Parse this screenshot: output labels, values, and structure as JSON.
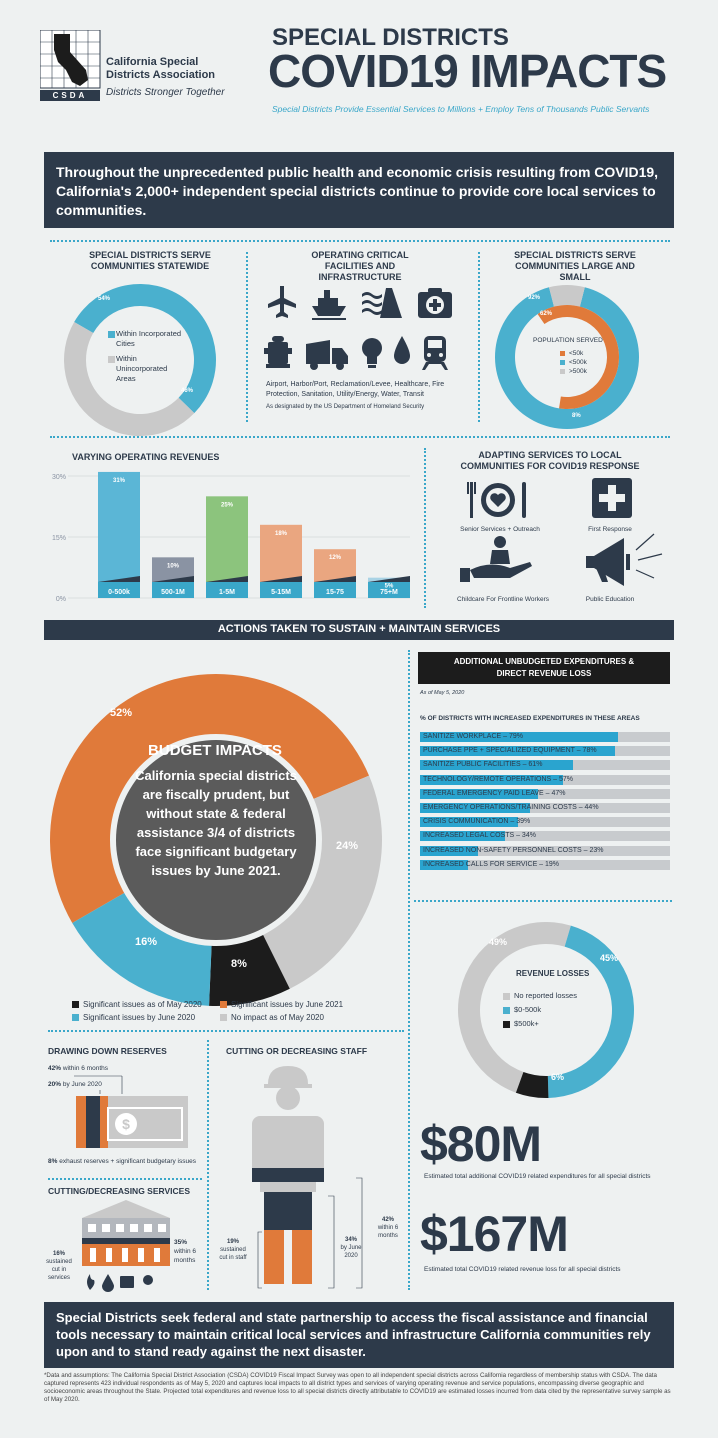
{
  "header": {
    "org_name_1": "California Special",
    "org_name_2": "Districts Association",
    "org_abbr": "CSDA",
    "org_tagline": "Districts Stronger Together",
    "title_small": "SPECIAL DISTRICTS",
    "title_big": "COVID19 IMPACTS",
    "subtitle": "Special Districts Provide Essential Services to Millions + Employ Tens of Thousands Public Servants"
  },
  "intro": "Throughout the unprecedented public health and economic crisis resulting from COVID19, California's 2,000+ independent special districts continue to provide core local services to communities.",
  "serve_statewide": {
    "title": "SPECIAL DISTRICTS SERVE COMMUNITIES STATEWIDE",
    "pct_within": "54%",
    "pct_unincorporated": "46%",
    "legend_within": "Within Incorporated Cities",
    "legend_unincorp": "Within Unincorporated Areas",
    "values": [
      54,
      46
    ],
    "colors": [
      "#4ab0ce",
      "#c9c9c9"
    ]
  },
  "critical_facilities": {
    "title": "OPERATING CRITICAL FACILITIES AND INFRASTRUCTURE",
    "icons": [
      "airplane-icon",
      "ship-icon",
      "levee-icon",
      "healthcare-icon",
      "fire-hydrant-icon",
      "garbage-truck-icon",
      "lightbulb-icon",
      "water-drop-icon",
      "train-icon"
    ],
    "text": "Airport, Harbor/Port, Reclamation/Levee, Healthcare, Fire Protection, Sanitation, Utility/Energy, Water, Transit",
    "note": "As designated by the US Department of Homeland Security"
  },
  "serve_large_small": {
    "title": "SPECIAL DISTRICTS SERVE COMMUNITIES LARGE AND SMALL",
    "outer_pct": "92%",
    "inner_pct": "62%",
    "small_pct": "8%",
    "legend_title": "POPULATION SERVED",
    "legend": [
      "<50k",
      "<500k",
      ">500k"
    ],
    "colors": [
      "#e07a3a",
      "#4ab0ce",
      "#c9c9c9"
    ]
  },
  "revenues": {
    "title": "VARYING OPERATING REVENUES",
    "ticks": [
      "30%",
      "15%",
      "0%"
    ]
  },
  "adapting": {
    "title": "ADAPTING SERVICES TO LOCAL COMMUNITIES FOR COVID19 RESPONSE",
    "items": [
      "Senior Services + Outreach",
      "First Response",
      "Childcare For Frontline Workers",
      "Public Education"
    ]
  },
  "actions_banner": "ACTIONS TAKEN TO SUSTAIN + MAINTAIN SERVICES",
  "budget": {
    "title": "BUDGET IMPACTS",
    "text": "California special districts are fiscally prudent, but without state & federal assistance 3/4 of districts face significant budgetary issues by June 2021.",
    "pct_labels": [
      "52%",
      "24%",
      "8%",
      "16%"
    ],
    "values": [
      52,
      24,
      8,
      16
    ],
    "colors": [
      "#e07a3a",
      "#c9c9c9",
      "#1c1c1c",
      "#4ab0ce"
    ],
    "legend": [
      "Significant issues as of May 2020",
      "Significant issues by June 2021",
      "Significant issues by June 2020",
      "No impact as of May 2020"
    ]
  },
  "unbudgeted": {
    "title": "ADDITIONAL UNBUDGETED EXPENDITURES & DIRECT REVENUE LOSS",
    "as_of": "As of May 5, 2020",
    "subtitle": "% OF DISTRICTS WITH INCREASED EXPENDITURES IN THESE AREAS",
    "items": [
      {
        "label": "SANITIZE WORKPLACE – 79%",
        "value": 79
      },
      {
        "label": "PURCHASE PPE + SPECIALIZED EQUIPMENT – 78%",
        "value": 78
      },
      {
        "label": "SANITIZE PUBLIC FACILITIES – 61%",
        "value": 61
      },
      {
        "label": "TECHNOLOGY/REMOTE OPERATIONS – 57%",
        "value": 57
      },
      {
        "label": "FEDERAL EMERGENCY PAID LEAVE – 47%",
        "value": 47
      },
      {
        "label": "EMERGENCY OPERATIONS/TRAINING COSTS – 44%",
        "value": 44
      },
      {
        "label": "CRISIS COMMUNICATION – 39%",
        "value": 39
      },
      {
        "label": "INCREASED LEGAL COSTS – 34%",
        "value": 34
      },
      {
        "label": "INCREASED NON-SAFETY PERSONNEL COSTS – 23%",
        "value": 23
      },
      {
        "label": "INCREASED CALLS FOR SERVICE – 19%",
        "value": 19
      }
    ]
  },
  "revenue_losses": {
    "title": "REVENUE LOSSES",
    "pct_labels": [
      "49%",
      "45%",
      "6%"
    ],
    "values": [
      49,
      45,
      6
    ],
    "colors": [
      "#c9c9c9",
      "#4ab0ce",
      "#1c1c1c"
    ],
    "legend": [
      "No reported losses",
      "$0-500k",
      "$500k+"
    ]
  },
  "reserves": {
    "title": "DRAWING DOWN RESERVES",
    "l1_pct": "42%",
    "l1_text": "within 6 months",
    "l2_pct": "20%",
    "l2_text": "by June 2020",
    "l3_pct": "8%",
    "l3_text": "exhaust reserves + significant budgetary issues"
  },
  "services_cut": {
    "title": "CUTTING/DECREASING SERVICES",
    "left_pct": "16%",
    "left_text": "sustained cut in services",
    "right_pct": "35%",
    "right_text": "within 6 months"
  },
  "staff": {
    "title": "CUTTING OR DECREASING STAFF",
    "left_pct": "19%",
    "left_text": "sustained cut in staff",
    "mid_pct": "34%",
    "mid_text": "by June 2020",
    "right_pct": "42%",
    "right_text": "within 6 months"
  },
  "big_numbers": {
    "n1": "$80M",
    "n1_text": "Estimated total additional COVID19 related expenditures for all special districts",
    "n2": "$167M",
    "n2_text": "Estimated total COVID19 related revenue loss for all special districts"
  },
  "footer": {
    "banner": "Special Districts seek federal and state partnership to access the fiscal assistance and financial tools necessary to maintain critical local services and infrastructure California communities rely upon and to stand ready against the next disaster.",
    "note": "*Data and assumptions: The California Special District Association (CSDA) COVID19 Fiscal Impact Survey was open to all independent special districts across California regardless of membership status with CSDA. The data captured represents 423 individual respondents as of May 5, 2020 and captures local impacts to all district types and services of varying operating revenue and service populations, encompassing diverse geographic and socioeconomic areas throughout the State. Projected total expenditures and revenue loss to all special districts directly attributable to COVID19 are estimated losses incurred from data cited by the representative survey sample as of May 2020."
  },
  "chart_data": [
    {
      "type": "bar",
      "title": "VARYING OPERATING REVENUES",
      "categories": [
        "0-500k",
        "500-1M",
        "1-5M",
        "5-15M",
        "15-75",
        "75+M"
      ],
      "values": [
        31,
        10,
        25,
        18,
        12,
        5
      ],
      "value_labels": [
        "31%",
        "10%",
        "25%",
        "18%",
        "12%",
        "5%"
      ],
      "colors": [
        "#5bb6d6",
        "#8a93a3",
        "#8cc47d",
        "#eaa680",
        "#eaa680",
        "#a9d3e5"
      ],
      "ylim": [
        0,
        30
      ]
    }
  ]
}
